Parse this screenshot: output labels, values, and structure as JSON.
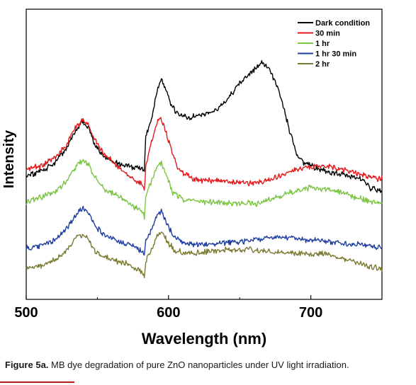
{
  "chart_data": {
    "type": "line",
    "xlabel": "Wavelength (nm)",
    "ylabel": "Intensity",
    "xlim": [
      500,
      750
    ],
    "ylim": [
      0,
      1
    ],
    "xticks": [
      500,
      600,
      700
    ],
    "xtick_labels": [
      "500",
      "600",
      "700"
    ],
    "yticks": false,
    "grid": false,
    "legend_position": "top-right",
    "series": [
      {
        "name": "Dark condition",
        "color": "#000000",
        "points": [
          [
            500,
            0.425
          ],
          [
            510,
            0.44
          ],
          [
            520,
            0.47
          ],
          [
            528,
            0.52
          ],
          [
            532,
            0.56
          ],
          [
            536,
            0.59
          ],
          [
            540,
            0.615
          ],
          [
            544,
            0.59
          ],
          [
            548,
            0.535
          ],
          [
            555,
            0.49
          ],
          [
            565,
            0.465
          ],
          [
            575,
            0.455
          ],
          [
            582,
            0.45
          ],
          [
            583,
            0.44
          ],
          [
            584,
            0.56
          ],
          [
            588,
            0.62
          ],
          [
            592,
            0.72
          ],
          [
            595,
            0.76
          ],
          [
            598,
            0.725
          ],
          [
            602,
            0.665
          ],
          [
            608,
            0.635
          ],
          [
            615,
            0.625
          ],
          [
            622,
            0.635
          ],
          [
            630,
            0.645
          ],
          [
            640,
            0.68
          ],
          [
            650,
            0.745
          ],
          [
            660,
            0.79
          ],
          [
            665,
            0.815
          ],
          [
            670,
            0.8
          ],
          [
            675,
            0.75
          ],
          [
            680,
            0.68
          ],
          [
            685,
            0.58
          ],
          [
            690,
            0.5
          ],
          [
            695,
            0.47
          ],
          [
            705,
            0.45
          ],
          [
            715,
            0.435
          ],
          [
            725,
            0.43
          ],
          [
            735,
            0.415
          ],
          [
            742,
            0.385
          ],
          [
            750,
            0.37
          ]
        ]
      },
      {
        "name": "30 min",
        "color": "#e31a1c",
        "points": [
          [
            500,
            0.445
          ],
          [
            510,
            0.46
          ],
          [
            520,
            0.49
          ],
          [
            528,
            0.53
          ],
          [
            532,
            0.57
          ],
          [
            536,
            0.6
          ],
          [
            540,
            0.62
          ],
          [
            544,
            0.6
          ],
          [
            548,
            0.55
          ],
          [
            555,
            0.5
          ],
          [
            565,
            0.455
          ],
          [
            572,
            0.425
          ],
          [
            578,
            0.405
          ],
          [
            582,
            0.395
          ],
          [
            583,
            0.375
          ],
          [
            584,
            0.46
          ],
          [
            588,
            0.54
          ],
          [
            592,
            0.61
          ],
          [
            594,
            0.625
          ],
          [
            598,
            0.58
          ],
          [
            603,
            0.5
          ],
          [
            608,
            0.44
          ],
          [
            615,
            0.42
          ],
          [
            625,
            0.41
          ],
          [
            635,
            0.41
          ],
          [
            645,
            0.405
          ],
          [
            655,
            0.4
          ],
          [
            665,
            0.405
          ],
          [
            675,
            0.42
          ],
          [
            685,
            0.44
          ],
          [
            695,
            0.455
          ],
          [
            705,
            0.46
          ],
          [
            715,
            0.455
          ],
          [
            725,
            0.445
          ],
          [
            735,
            0.43
          ],
          [
            742,
            0.42
          ],
          [
            750,
            0.415
          ]
        ]
      },
      {
        "name": "1 hr",
        "color": "#7cc443",
        "points": [
          [
            500,
            0.335
          ],
          [
            510,
            0.35
          ],
          [
            520,
            0.37
          ],
          [
            528,
            0.405
          ],
          [
            532,
            0.44
          ],
          [
            536,
            0.465
          ],
          [
            540,
            0.48
          ],
          [
            544,
            0.465
          ],
          [
            548,
            0.42
          ],
          [
            555,
            0.38
          ],
          [
            565,
            0.355
          ],
          [
            572,
            0.335
          ],
          [
            578,
            0.31
          ],
          [
            582,
            0.3
          ],
          [
            583,
            0.275
          ],
          [
            584,
            0.36
          ],
          [
            588,
            0.41
          ],
          [
            592,
            0.46
          ],
          [
            595,
            0.47
          ],
          [
            599,
            0.42
          ],
          [
            603,
            0.37
          ],
          [
            610,
            0.345
          ],
          [
            620,
            0.34
          ],
          [
            630,
            0.335
          ],
          [
            640,
            0.335
          ],
          [
            650,
            0.33
          ],
          [
            660,
            0.33
          ],
          [
            670,
            0.34
          ],
          [
            680,
            0.36
          ],
          [
            690,
            0.375
          ],
          [
            700,
            0.385
          ],
          [
            710,
            0.38
          ],
          [
            720,
            0.37
          ],
          [
            730,
            0.355
          ],
          [
            740,
            0.34
          ],
          [
            750,
            0.33
          ]
        ]
      },
      {
        "name": "1 hr 30 min",
        "color": "#1f3fa0",
        "points": [
          [
            500,
            0.175
          ],
          [
            510,
            0.185
          ],
          [
            520,
            0.205
          ],
          [
            528,
            0.24
          ],
          [
            532,
            0.27
          ],
          [
            536,
            0.3
          ],
          [
            540,
            0.315
          ],
          [
            544,
            0.295
          ],
          [
            548,
            0.255
          ],
          [
            555,
            0.22
          ],
          [
            565,
            0.2
          ],
          [
            575,
            0.185
          ],
          [
            580,
            0.17
          ],
          [
            583,
            0.15
          ],
          [
            584,
            0.2
          ],
          [
            588,
            0.24
          ],
          [
            592,
            0.29
          ],
          [
            595,
            0.3
          ],
          [
            599,
            0.26
          ],
          [
            604,
            0.215
          ],
          [
            610,
            0.195
          ],
          [
            620,
            0.19
          ],
          [
            630,
            0.19
          ],
          [
            640,
            0.195
          ],
          [
            650,
            0.2
          ],
          [
            660,
            0.205
          ],
          [
            670,
            0.215
          ],
          [
            680,
            0.215
          ],
          [
            690,
            0.21
          ],
          [
            700,
            0.205
          ],
          [
            710,
            0.2
          ],
          [
            720,
            0.195
          ],
          [
            730,
            0.19
          ],
          [
            740,
            0.185
          ],
          [
            750,
            0.18
          ]
        ]
      },
      {
        "name": "2 hr",
        "color": "#7a7a32",
        "points": [
          [
            500,
            0.105
          ],
          [
            510,
            0.115
          ],
          [
            520,
            0.135
          ],
          [
            528,
            0.165
          ],
          [
            532,
            0.19
          ],
          [
            536,
            0.215
          ],
          [
            540,
            0.225
          ],
          [
            544,
            0.205
          ],
          [
            548,
            0.17
          ],
          [
            555,
            0.145
          ],
          [
            565,
            0.13
          ],
          [
            575,
            0.115
          ],
          [
            580,
            0.1
          ],
          [
            583,
            0.085
          ],
          [
            584,
            0.13
          ],
          [
            588,
            0.17
          ],
          [
            592,
            0.22
          ],
          [
            595,
            0.235
          ],
          [
            599,
            0.2
          ],
          [
            604,
            0.17
          ],
          [
            610,
            0.16
          ],
          [
            620,
            0.16
          ],
          [
            630,
            0.165
          ],
          [
            640,
            0.17
          ],
          [
            650,
            0.17
          ],
          [
            660,
            0.17
          ],
          [
            670,
            0.165
          ],
          [
            680,
            0.16
          ],
          [
            690,
            0.16
          ],
          [
            700,
            0.155
          ],
          [
            710,
            0.155
          ],
          [
            720,
            0.145
          ],
          [
            730,
            0.13
          ],
          [
            740,
            0.115
          ],
          [
            750,
            0.105
          ]
        ]
      }
    ]
  },
  "caption": {
    "label": "Figure 5a.",
    "text": " MB dye degradation of pure ZnO nanoparticles under UV light irradiation."
  }
}
